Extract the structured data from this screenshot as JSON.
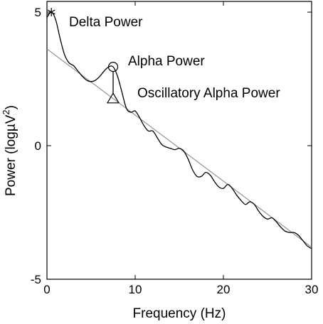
{
  "chart_data": {
    "type": "line",
    "title": "",
    "xlabel": "Frequency (Hz)",
    "ylabel_main": "Power (logµV",
    "ylabel_sup": "2",
    "ylabel_close": ")",
    "xlim": [
      0,
      30
    ],
    "ylim": [
      -5,
      5.4
    ],
    "xticks": [
      0,
      10,
      20,
      30
    ],
    "xtick_labels": [
      "0",
      "10",
      "20",
      "30"
    ],
    "yticks": [
      -5,
      0,
      5
    ],
    "ytick_labels": [
      "-5",
      "0",
      "5"
    ],
    "grid": false,
    "legend": "none",
    "series": [
      {
        "role": "spectrum",
        "color": "#000000",
        "x": [
          0.0,
          0.5,
          1.0,
          1.5,
          2.0,
          2.5,
          3.0,
          3.5,
          4.0,
          4.5,
          5.0,
          5.5,
          6.0,
          6.5,
          7.0,
          7.5,
          8.0,
          8.5,
          9.0,
          9.5,
          10.0,
          10.5,
          11.0,
          11.5,
          12.0,
          12.5,
          13.0,
          13.5,
          14.0,
          14.5,
          15.0,
          15.5,
          16.0,
          16.5,
          17.0,
          17.5,
          18.0,
          18.5,
          19.0,
          19.5,
          20.0,
          20.5,
          21.0,
          21.5,
          22.0,
          22.5,
          23.0,
          23.5,
          24.0,
          24.5,
          25.0,
          25.5,
          26.0,
          26.5,
          27.0,
          27.5,
          28.0,
          28.5,
          29.0,
          29.5,
          30.0
        ],
        "y": [
          4.8,
          5.0,
          4.7,
          4.0,
          3.4,
          3.1,
          3.0,
          2.8,
          2.6,
          2.45,
          2.4,
          2.45,
          2.6,
          2.8,
          2.95,
          2.95,
          2.6,
          2.0,
          1.4,
          1.25,
          1.3,
          1.05,
          0.75,
          0.55,
          0.55,
          0.3,
          0.05,
          -0.05,
          -0.1,
          -0.15,
          -0.1,
          -0.2,
          -0.5,
          -0.9,
          -1.15,
          -1.15,
          -1.0,
          -1.1,
          -1.35,
          -1.55,
          -1.6,
          -1.45,
          -1.6,
          -1.85,
          -2.05,
          -2.2,
          -2.1,
          -2.2,
          -2.45,
          -2.65,
          -2.75,
          -2.7,
          -2.85,
          -3.05,
          -3.2,
          -3.25,
          -3.25,
          -3.35,
          -3.55,
          -3.75,
          -3.85
        ]
      },
      {
        "role": "aperiodic-fit",
        "color": "#8c8c8c",
        "x": [
          0,
          30
        ],
        "y": [
          3.62,
          -3.8
        ]
      }
    ],
    "markers": [
      {
        "name": "delta-marker",
        "symbol": "asterisk",
        "x": 0.5,
        "y": 5.0
      },
      {
        "name": "alpha-marker",
        "symbol": "circle",
        "x": 7.5,
        "y": 2.95
      },
      {
        "name": "oscillatory-alpha-marker",
        "symbol": "triangle",
        "x": 7.5,
        "y": 1.75
      }
    ],
    "annotations": [
      {
        "key": "delta",
        "text": "Delta Power"
      },
      {
        "key": "alpha",
        "text": "Alpha Power"
      },
      {
        "key": "osc",
        "text": "Oscillatory Alpha Power"
      }
    ]
  }
}
